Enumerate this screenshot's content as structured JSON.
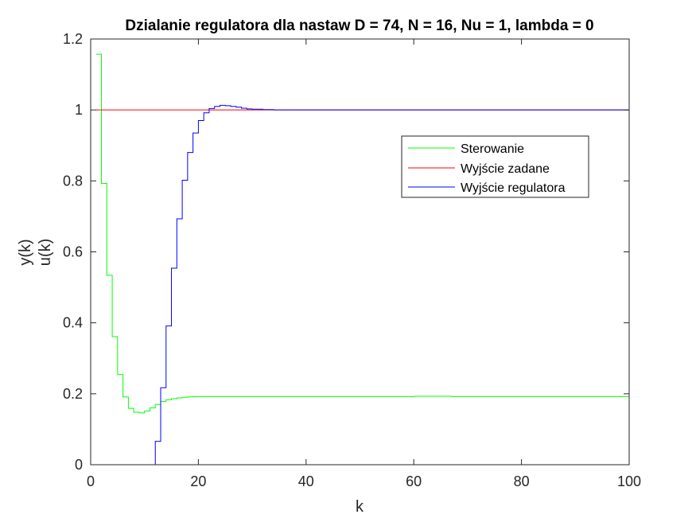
{
  "chart_data": {
    "type": "line",
    "title": "Dzialanie regulatora dla nastaw D = 74, N = 16, Nu = 1, lambda = 0",
    "xlabel": "k",
    "ylabel": [
      "y(k)",
      "u(k)"
    ],
    "xlim": [
      0,
      100
    ],
    "ylim": [
      0,
      1.2
    ],
    "xticks": [
      0,
      20,
      40,
      60,
      80,
      100
    ],
    "yticks": [
      0,
      0.2,
      0.4,
      0.6,
      0.8,
      1,
      1.2
    ],
    "xtick_labels": [
      "0",
      "20",
      "40",
      "60",
      "80",
      "100"
    ],
    "ytick_labels": [
      "0",
      "0.2",
      "0.4",
      "0.6",
      "0.8",
      "1",
      "1.2"
    ],
    "grid": false,
    "legend_position": "top-right",
    "stairs": true,
    "series": [
      {
        "name": "Sterowanie",
        "color": "#00ff00",
        "x": [
          1,
          2,
          3,
          4,
          5,
          6,
          7,
          8,
          9,
          10,
          11,
          12,
          13,
          14,
          15,
          16,
          17,
          18,
          19,
          20,
          30,
          60,
          67,
          100
        ],
        "y": [
          1.157,
          0.793,
          0.534,
          0.361,
          0.254,
          0.191,
          0.159,
          0.148,
          0.146,
          0.151,
          0.16,
          0.17,
          0.178,
          0.183,
          0.186,
          0.188,
          0.19,
          0.191,
          0.192,
          0.192,
          0.192,
          0.193,
          0.192,
          0.192
        ]
      },
      {
        "name": "Wyjście zadane",
        "color": "#ff0000",
        "x": [
          1,
          100
        ],
        "y": [
          1,
          1
        ]
      },
      {
        "name": "Wyjście regulatora",
        "color": "#0000ff",
        "x": [
          1,
          12,
          13,
          14,
          15,
          16,
          17,
          18,
          19,
          20,
          21,
          22,
          23,
          24,
          25,
          26,
          27,
          28,
          29,
          30,
          32,
          34,
          100
        ],
        "y": [
          0,
          0.066,
          0.217,
          0.391,
          0.554,
          0.693,
          0.802,
          0.88,
          0.935,
          0.97,
          0.992,
          1.004,
          1.01,
          1.013,
          1.012,
          1.01,
          1.008,
          1.005,
          1.003,
          1.002,
          1.001,
          1.0,
          1.0
        ]
      }
    ]
  }
}
